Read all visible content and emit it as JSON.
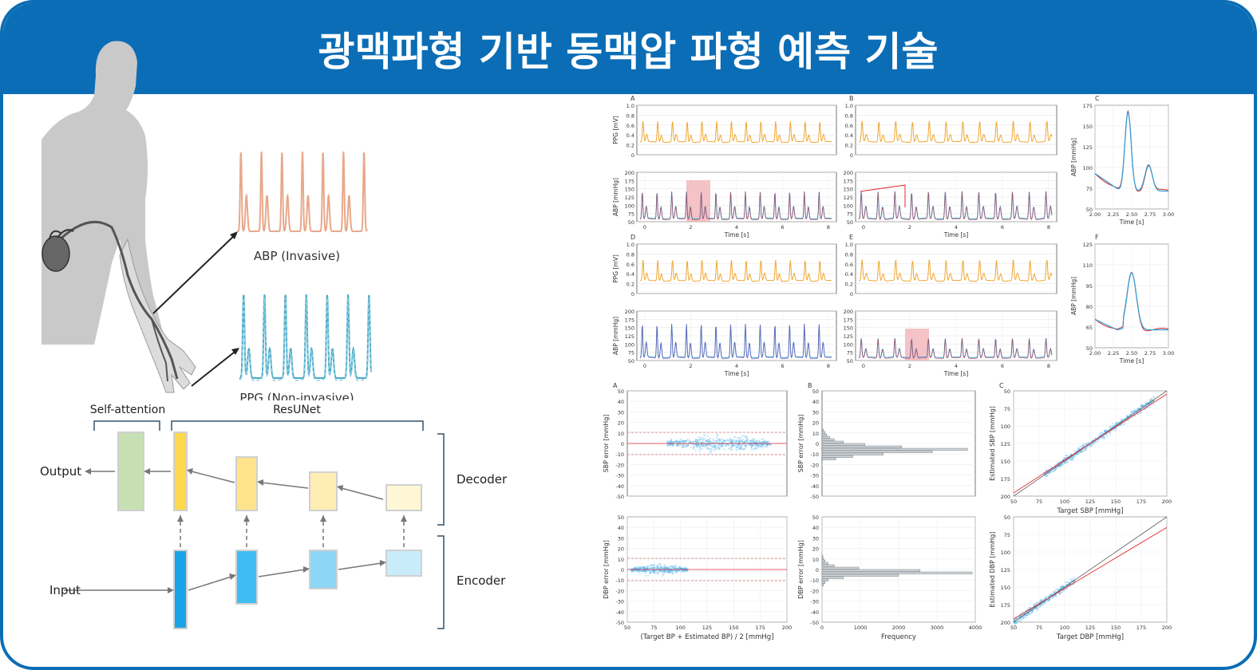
{
  "header": {
    "title": "광맥파형 기반 동맥압 파형 예측 기술"
  },
  "colors": {
    "frame_blue": "#0b6db5",
    "ppg_orange": "#f0a630",
    "abp_blue": "#2a9fd6",
    "estimate_red": "#e0282e",
    "highlight": "#f2b3b8",
    "scatter_blue": "#4aaee8"
  },
  "illustration": {
    "abp_label": "ABP (Invasive)",
    "ppg_label": "PPG (Non-invasive)"
  },
  "architecture": {
    "self_attention": "Self-attention",
    "resunet": "ResUNet",
    "output": "Output",
    "input": "Input",
    "decoder": "Decoder",
    "encoder": "Encoder"
  },
  "waveforms": {
    "panel_letters": [
      "A",
      "B",
      "C",
      "D",
      "E",
      "F"
    ],
    "ppg_ylabel": "PPG [mV]",
    "abp_ylabel": "ABP [mmHg]",
    "time_xlabel": "Time [s]",
    "ppg_yticks": [
      "1.0",
      "0.8",
      "0.6",
      "0.4",
      "0.2",
      "0"
    ],
    "abp_yticks": [
      "200",
      "175",
      "150",
      "125",
      "100",
      "75",
      "50"
    ],
    "time_ticks": [
      "0",
      "2",
      "4",
      "6",
      "8"
    ],
    "zoom_xticks": [
      "2.00",
      "2.25",
      "2.50",
      "2.75",
      "3.00"
    ],
    "zoom_c_yticks": [
      "175",
      "150",
      "125",
      "100",
      "75",
      "50"
    ],
    "zoom_f_yticks": [
      "125",
      "110",
      "95",
      "80",
      "65",
      "50"
    ]
  },
  "error_plots": {
    "panel_letters": [
      "A",
      "B",
      "C"
    ],
    "sbp_error_ylabel": "SBP error [mmHg]",
    "dbp_error_ylabel": "DBP error [mmHg]",
    "ba_xlabel": "(Target BP + Estimated BP) / 2 [mmHg]",
    "freq_xlabel": "Frequency",
    "est_sbp_ylabel": "Estimated SBP [mmHg]",
    "target_sbp_xlabel": "Target SBP [mmHg]",
    "est_dbp_ylabel": "Estimated DBP [mmHg]",
    "target_dbp_xlabel": "Target DBP [mmHg]",
    "err_yticks": [
      "50",
      "40",
      "30",
      "20",
      "10",
      "0",
      "-10",
      "-20",
      "-30",
      "-40",
      "-50"
    ],
    "ba_xticks": [
      "50",
      "75",
      "100",
      "125",
      "150",
      "175",
      "200"
    ],
    "freq_xticks": [
      "0",
      "1000",
      "2000",
      "3000",
      "4000"
    ],
    "scatter_ticks": [
      "50",
      "75",
      "100",
      "125",
      "150",
      "175",
      "200"
    ]
  }
}
